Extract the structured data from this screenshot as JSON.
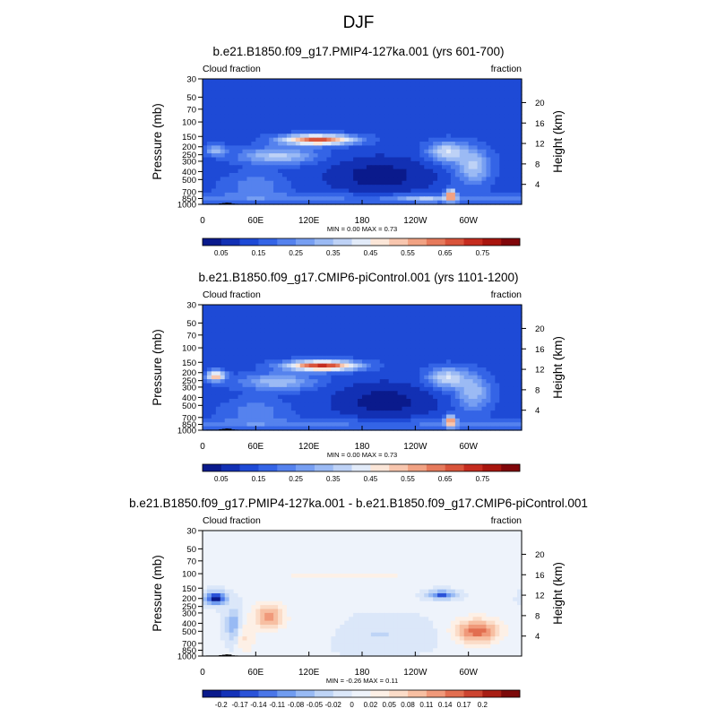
{
  "page_title": "DJF",
  "colors": {
    "seq": [
      "#0a1a8c",
      "#1230b4",
      "#1e4ad6",
      "#3464e6",
      "#5582ee",
      "#779ff2",
      "#9bbaf4",
      "#bed2f6",
      "#e2ebf9",
      "#fbe6d8",
      "#f8c6ae",
      "#f1a283",
      "#e67a5c",
      "#d9543b",
      "#c52c1f",
      "#a8150e",
      "#80060a"
    ],
    "div": [
      "#0a1a8c",
      "#1432b8",
      "#2a52d8",
      "#4a76e8",
      "#709cf0",
      "#98baf4",
      "#bed4f6",
      "#dbe7f9",
      "#eef3fb",
      "#fdf0e6",
      "#fbdcc8",
      "#f7bfa2",
      "#f0997a",
      "#e26e50",
      "#cc4430",
      "#a81e14",
      "#7c0a0a"
    ],
    "terrain": "#000000"
  },
  "chart_data": [
    {
      "type": "heatmap",
      "title": "b.e21.B1850.f09_g17.PMIP4-127ka.001 (yrs 601-700)",
      "left_label": "Cloud fraction",
      "right_label": "fraction",
      "ylabel": "Pressure (mb)",
      "ylabel_right": "Height (km)",
      "x_ticks": [
        "0",
        "60E",
        "120E",
        "180",
        "120W",
        "60W"
      ],
      "y_ticks": [
        "1000",
        "850",
        "700",
        "500",
        "400",
        "300",
        "250",
        "200",
        "150",
        "100",
        "70",
        "50",
        "30"
      ],
      "height_ticks": [
        "4",
        "8",
        "12",
        "16",
        "20"
      ],
      "stats": "MIN =   0.00  MAX =   0.73",
      "colorbar_levels": [
        "0.05",
        "0.15",
        "0.25",
        "0.35",
        "0.45",
        "0.55",
        "0.65",
        "0.75"
      ],
      "colorbar_kind": "seq",
      "base_value": 0.12,
      "range": [
        0,
        0.8
      ],
      "features": [
        {
          "lon": 130,
          "p": 165,
          "slon": 28,
          "slogp": 0.1,
          "v": 0.52
        },
        {
          "lon": 85,
          "p": 260,
          "slon": 30,
          "slogp": 0.16,
          "v": 0.22
        },
        {
          "lon": 15,
          "p": 220,
          "slon": 8,
          "slogp": 0.1,
          "v": 0.2
        },
        {
          "lon": 275,
          "p": 230,
          "slon": 15,
          "slogp": 0.2,
          "v": 0.25
        },
        {
          "lon": 305,
          "p": 350,
          "slon": 14,
          "slogp": 0.35,
          "v": 0.22
        },
        {
          "lon": 280,
          "p": 780,
          "slon": 4,
          "slogp": 0.12,
          "v": 0.45
        },
        {
          "lon": 200,
          "p": 450,
          "slon": 40,
          "slogp": 0.35,
          "v": -0.1
        },
        {
          "lon": 60,
          "p": 600,
          "slon": 25,
          "slogp": 0.25,
          "v": 0.1
        },
        {
          "lon": 250,
          "p": 850,
          "slon": 20,
          "slogp": 0.06,
          "v": 0.15
        }
      ],
      "terrain_pressure": [
        1000,
        1000,
        1000,
        1000,
        990,
        980,
        970,
        975,
        995,
        1000
      ]
    },
    {
      "type": "heatmap",
      "title": "b.e21.B1850.f09_g17.CMIP6-piControl.001 (yrs 1101-1200)",
      "left_label": "Cloud fraction",
      "right_label": "fraction",
      "ylabel": "Pressure (mb)",
      "ylabel_right": "Height (km)",
      "x_ticks": [
        "0",
        "60E",
        "120E",
        "180",
        "120W",
        "60W"
      ],
      "y_ticks": [
        "1000",
        "850",
        "700",
        "500",
        "400",
        "300",
        "250",
        "200",
        "150",
        "100",
        "70",
        "50",
        "30"
      ],
      "height_ticks": [
        "4",
        "8",
        "12",
        "16",
        "20"
      ],
      "stats": "MIN =   0.00  MAX =   0.73",
      "colorbar_levels": [
        "0.05",
        "0.15",
        "0.25",
        "0.35",
        "0.45",
        "0.55",
        "0.65",
        "0.75"
      ],
      "colorbar_kind": "seq",
      "base_value": 0.12,
      "range": [
        0,
        0.8
      ],
      "features": [
        {
          "lon": 135,
          "p": 165,
          "slon": 28,
          "slogp": 0.1,
          "v": 0.55
        },
        {
          "lon": 85,
          "p": 260,
          "slon": 30,
          "slogp": 0.16,
          "v": 0.2
        },
        {
          "lon": 15,
          "p": 220,
          "slon": 7,
          "slogp": 0.1,
          "v": 0.4
        },
        {
          "lon": 275,
          "p": 230,
          "slon": 15,
          "slogp": 0.2,
          "v": 0.25
        },
        {
          "lon": 305,
          "p": 350,
          "slon": 14,
          "slogp": 0.35,
          "v": 0.2
        },
        {
          "lon": 280,
          "p": 780,
          "slon": 4,
          "slogp": 0.12,
          "v": 0.45
        },
        {
          "lon": 205,
          "p": 450,
          "slon": 38,
          "slogp": 0.35,
          "v": -0.1
        },
        {
          "lon": 60,
          "p": 600,
          "slon": 25,
          "slogp": 0.25,
          "v": 0.1
        }
      ],
      "terrain_pressure": [
        1000,
        1000,
        1000,
        1000,
        990,
        980,
        970,
        975,
        995,
        1000
      ]
    },
    {
      "type": "heatmap",
      "title": "b.e21.B1850.f09_g17.PMIP4-127ka.001 - b.e21.B1850.f09_g17.CMIP6-piControl.001",
      "left_label": "Cloud fraction",
      "right_label": "fraction",
      "ylabel": "Pressure (mb)",
      "ylabel_right": "Height (km)",
      "x_ticks": [
        "0",
        "60E",
        "120E",
        "180",
        "120W",
        "60W"
      ],
      "y_ticks": [
        "1000",
        "850",
        "700",
        "500",
        "400",
        "300",
        "250",
        "200",
        "150",
        "100",
        "70",
        "50",
        "30"
      ],
      "height_ticks": [
        "4",
        "8",
        "12",
        "16",
        "20"
      ],
      "stats": "MIN =  -0.26  MAX =   0.11",
      "colorbar_levels": [
        "-0.2",
        "-0.17",
        "-0.14",
        "-0.11",
        "-0.08",
        "-0.05",
        "-0.02",
        "0",
        "0.02",
        "0.05",
        "0.08",
        "0.11",
        "0.14",
        "0.17",
        "0.2"
      ],
      "colorbar_kind": "div",
      "base_value": -0.01,
      "range": [
        -0.22,
        0.22
      ],
      "features": [
        {
          "lon": 15,
          "p": 200,
          "slon": 8,
          "slogp": 0.12,
          "v": -0.2
        },
        {
          "lon": 35,
          "p": 450,
          "slon": 6,
          "slogp": 0.35,
          "v": -0.1
        },
        {
          "lon": 75,
          "p": 330,
          "slon": 12,
          "slogp": 0.25,
          "v": 0.12
        },
        {
          "lon": 45,
          "p": 600,
          "slon": 10,
          "slogp": 0.3,
          "v": 0.06
        },
        {
          "lon": 160,
          "p": 110,
          "slon": 80,
          "slogp": 0.04,
          "v": 0.05
        },
        {
          "lon": 270,
          "p": 180,
          "slon": 10,
          "slogp": 0.08,
          "v": -0.14
        },
        {
          "lon": 310,
          "p": 500,
          "slon": 18,
          "slogp": 0.25,
          "v": 0.14
        },
        {
          "lon": 200,
          "p": 550,
          "slon": 40,
          "slogp": 0.3,
          "v": -0.03
        },
        {
          "lon": 130,
          "p": 450,
          "slon": 20,
          "slogp": 0.3,
          "v": 0.02
        }
      ],
      "terrain_pressure": [
        1000,
        1000,
        1000,
        1000,
        990,
        980,
        970,
        975,
        995,
        1000
      ]
    }
  ]
}
